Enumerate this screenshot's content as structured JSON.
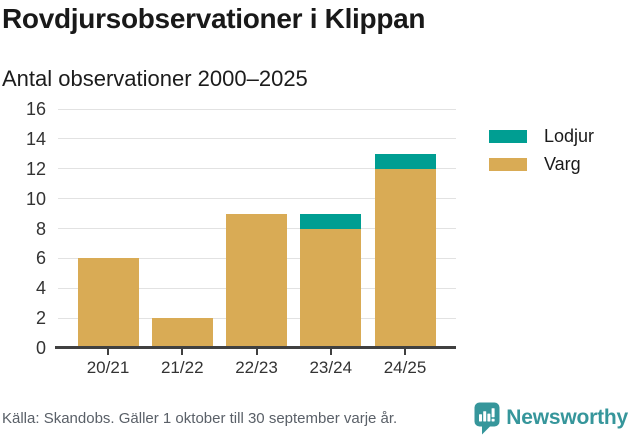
{
  "chart_data": {
    "type": "bar",
    "stacked": true,
    "title": "Rovdjursobservationer i Klippan",
    "subtitle": "Antal observationer 2000–2025",
    "categories": [
      "20/21",
      "21/22",
      "22/23",
      "23/24",
      "24/25"
    ],
    "series": [
      {
        "name": "Varg",
        "color": "#D9AB55",
        "values": [
          6,
          2,
          9,
          8,
          12
        ]
      },
      {
        "name": "Lodjur",
        "color": "#009E92",
        "values": [
          0,
          0,
          0,
          1,
          1
        ]
      }
    ],
    "totals": [
      6,
      2,
      9,
      9,
      13
    ],
    "ylim": [
      0,
      16
    ],
    "ytick_step": 2,
    "yticks": [
      0,
      2,
      4,
      6,
      8,
      10,
      12,
      14,
      16
    ],
    "grid": true,
    "legend_position": "right",
    "legend_order": [
      "Lodjur",
      "Varg"
    ],
    "xlabel": "",
    "ylabel": ""
  },
  "footer": {
    "source": "Källa: Skandobs. Gäller 1 oktober till 30 september varje år.",
    "brand": "Newsworthy",
    "brand_color": "#36969B"
  }
}
